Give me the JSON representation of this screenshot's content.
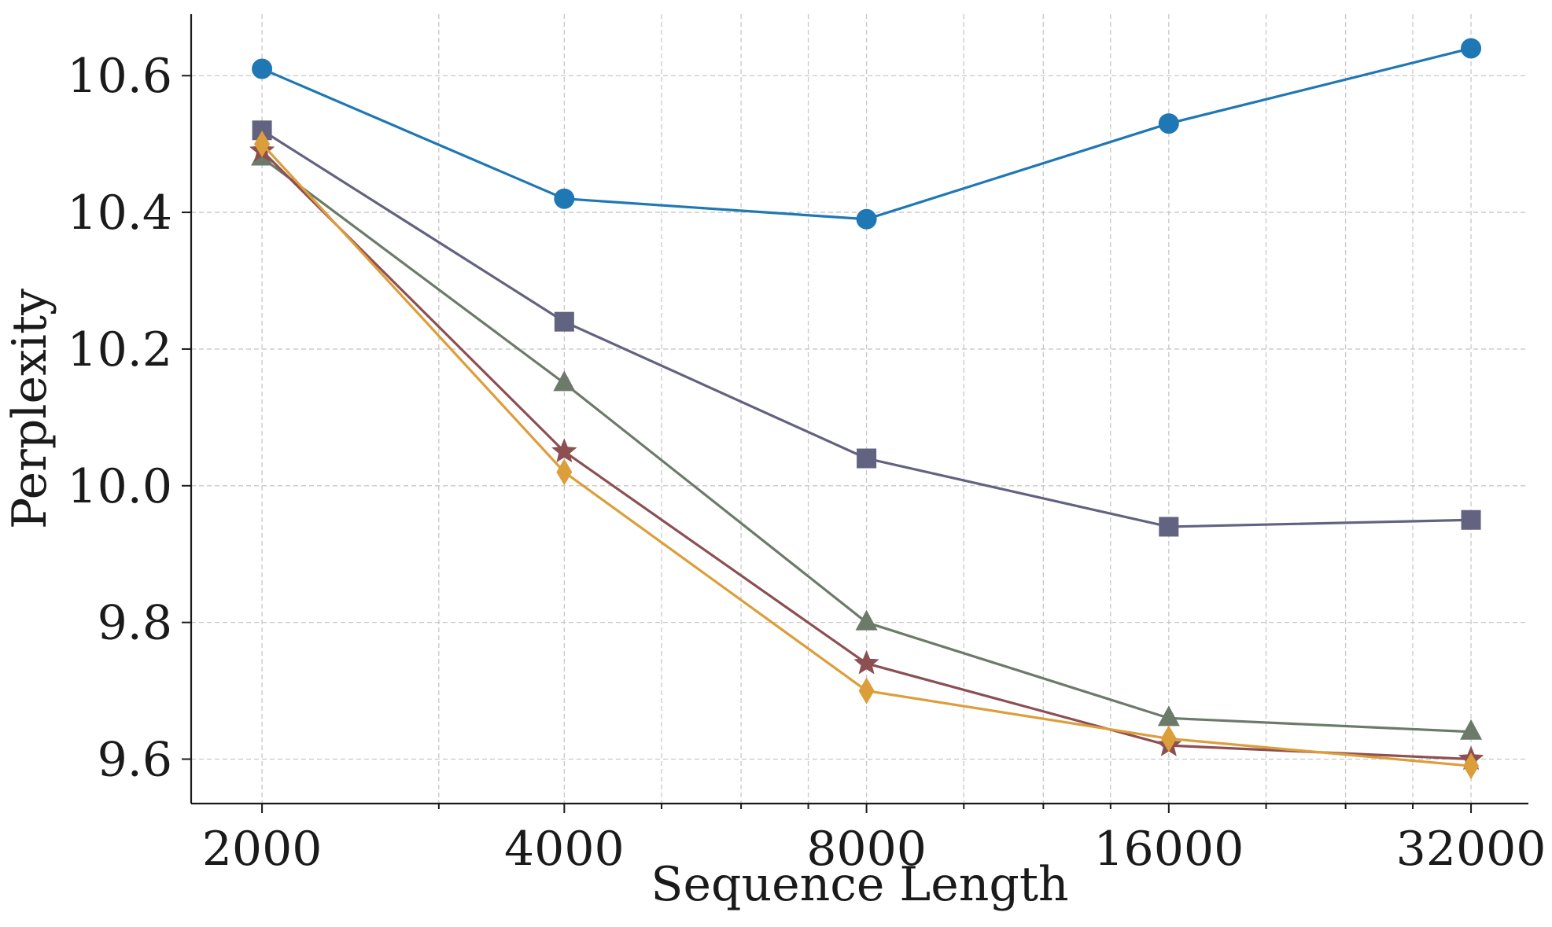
{
  "chart_data": {
    "type": "line",
    "title": "",
    "xlabel": "Sequence Length",
    "ylabel": "Perplexity",
    "x_scale": "log2",
    "x": [
      2000,
      4000,
      8000,
      16000,
      32000
    ],
    "x_tick_labels": [
      "2000",
      "4000",
      "8000",
      "16000",
      "32000"
    ],
    "y_ticks": [
      9.6,
      9.8,
      10.0,
      10.2,
      10.4,
      10.6
    ],
    "y_tick_labels": [
      "9.6",
      "9.8",
      "10.0",
      "10.2",
      "10.4",
      "10.6"
    ],
    "xlim": [
      1700,
      36500
    ],
    "ylim": [
      9.535,
      10.69
    ],
    "grid": true,
    "legend": "none",
    "series": [
      {
        "name": "series-1",
        "color": "#1f77b4",
        "marker": "circle",
        "values": [
          10.61,
          10.42,
          10.39,
          10.53,
          10.64
        ]
      },
      {
        "name": "series-2",
        "color": "#626281",
        "marker": "square",
        "values": [
          10.52,
          10.24,
          10.04,
          9.94,
          9.95
        ]
      },
      {
        "name": "series-3",
        "color": "#6b7a69",
        "marker": "triangle",
        "values": [
          10.48,
          10.15,
          9.8,
          9.66,
          9.64
        ]
      },
      {
        "name": "series-4",
        "color": "#8c4f52",
        "marker": "star",
        "values": [
          10.49,
          10.05,
          9.74,
          9.62,
          9.6
        ]
      },
      {
        "name": "series-5",
        "color": "#dc9e3a",
        "marker": "diamond",
        "values": [
          10.5,
          10.02,
          9.7,
          9.63,
          9.59
        ]
      }
    ]
  }
}
